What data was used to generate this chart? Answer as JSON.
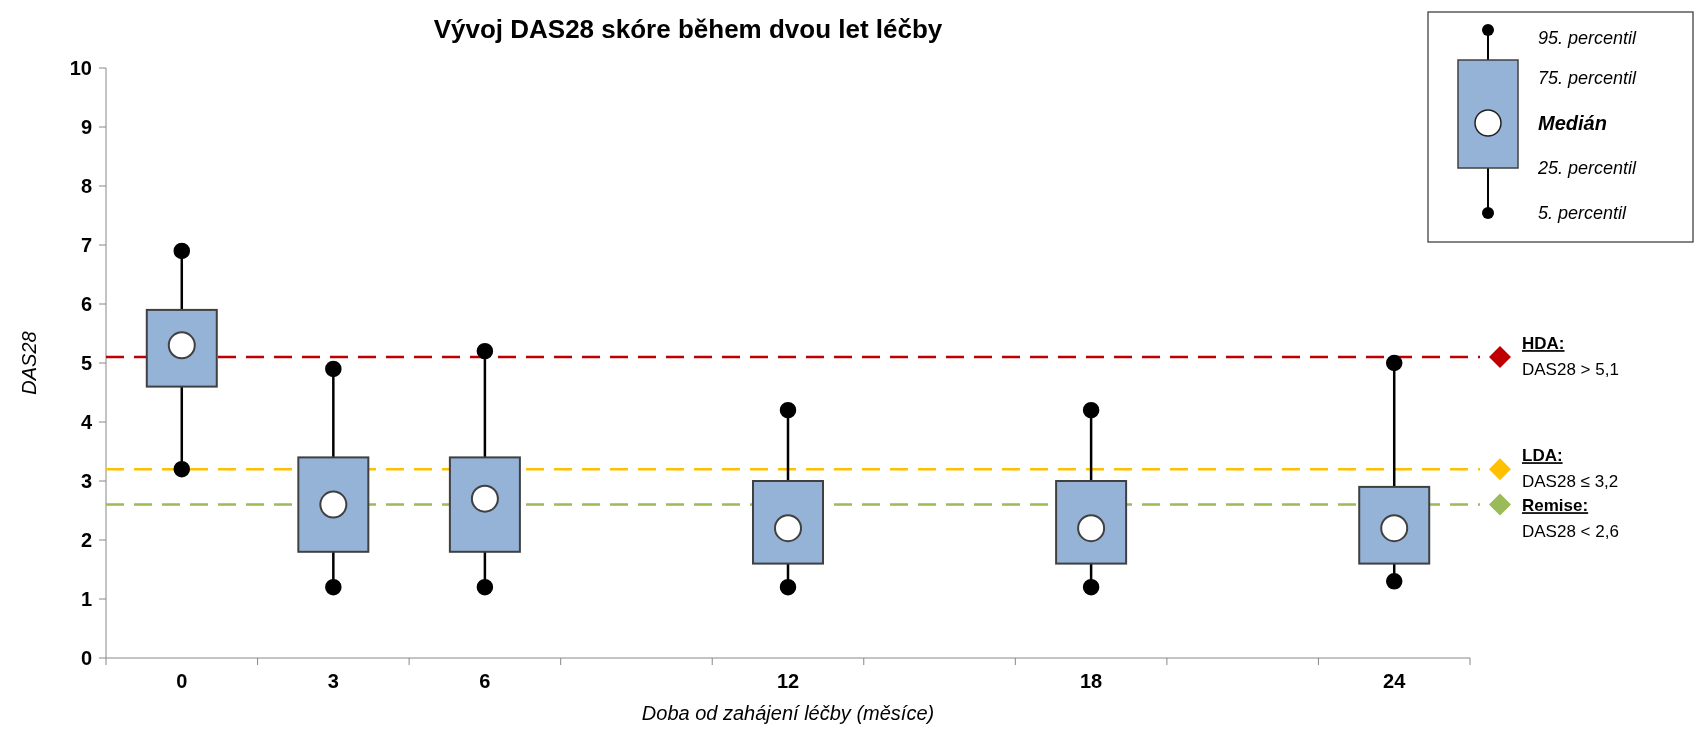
{
  "chart_data": {
    "type": "box",
    "title": "Vývoj DAS28 skóre během dvou let léčby",
    "xlabel": "Doba od zahájení léčby (měsíce)",
    "ylabel": "DAS28",
    "categories": [
      "0",
      "3",
      "6",
      null,
      "12",
      null,
      "18",
      null,
      "24"
    ],
    "color": "#95b3d7",
    "boxes": [
      {
        "low": 3.2,
        "q1": 4.6,
        "median": 5.3,
        "q3": 5.9,
        "high": 6.9
      },
      {
        "low": 1.2,
        "q1": 1.8,
        "median": 2.6,
        "q3": 3.4,
        "high": 4.9
      },
      {
        "low": 1.2,
        "q1": 1.8,
        "median": 2.7,
        "q3": 3.4,
        "high": 5.2
      },
      null,
      {
        "low": 1.2,
        "q1": 1.6,
        "median": 2.2,
        "q3": 3.0,
        "high": 4.2
      },
      null,
      {
        "low": 1.2,
        "q1": 1.6,
        "median": 2.2,
        "q3": 3.0,
        "high": 4.2
      },
      null,
      {
        "low": 1.3,
        "q1": 1.6,
        "median": 2.2,
        "q3": 2.9,
        "high": 5.0
      }
    ],
    "ylim": [
      0,
      10
    ],
    "yticks": [
      0,
      1,
      2,
      3,
      4,
      5,
      6,
      7,
      8,
      9,
      10
    ],
    "ref_lines": [
      {
        "axis": "y",
        "value": 5.1,
        "label": "HDA:\nDAS28 > 5,1",
        "color": "#c00000",
        "line_style": "dashed"
      },
      {
        "axis": "y",
        "value": 3.2,
        "label": "LDA:\nDAS28 ≤ 3,2",
        "color": "#ffc000",
        "line_style": "dashed"
      },
      {
        "axis": "y",
        "value": 2.6,
        "label": "Remise:\nDAS28 < 2,6",
        "color": "#9bbb59",
        "line_style": "dashed"
      }
    ],
    "annotations": [
      "95. percentil",
      "75. percentil",
      "Medián",
      "25. percentil",
      "5. percentil"
    ]
  }
}
